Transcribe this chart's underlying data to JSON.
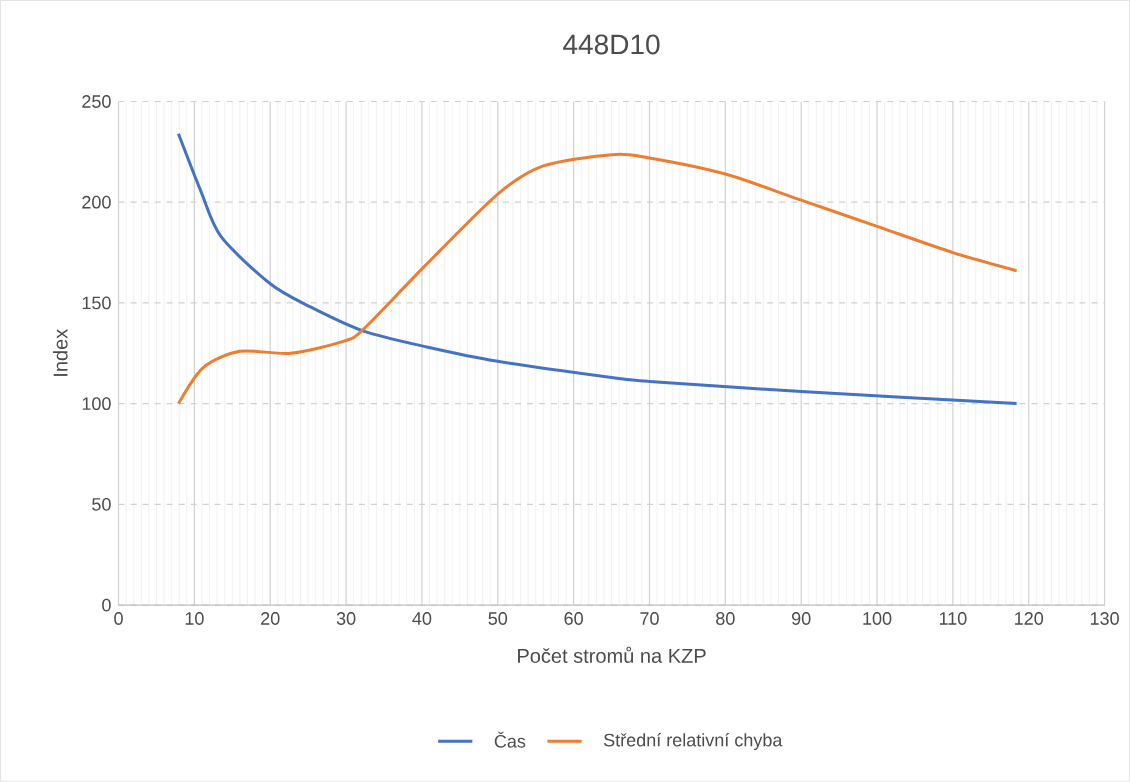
{
  "chart_data": {
    "type": "line",
    "title": "448D10",
    "xlabel": "Počet stromů na KZP",
    "ylabel": "Index",
    "xlim": [
      0,
      130
    ],
    "xticks": [
      0,
      10,
      20,
      30,
      40,
      50,
      60,
      70,
      80,
      90,
      100,
      110,
      120,
      130
    ],
    "ylim": [
      0,
      250
    ],
    "yticks": [
      0,
      50,
      100,
      150,
      200,
      250
    ],
    "grid": true,
    "legend": "bottom",
    "marker": "none",
    "series": [
      {
        "name": "Čas",
        "color": "#4472c4",
        "x": [
          7.9,
          10.8,
          13.5,
          20,
          25.3,
          32.3,
          40.8,
          50,
          65,
          70,
          90,
          118.4
        ],
        "values": [
          234,
          206,
          183,
          159.5,
          148,
          136,
          128,
          121,
          113,
          111,
          106,
          100
        ]
      },
      {
        "name": "Střední relativní chyba",
        "color": "#ed7d31",
        "x": [
          7.9,
          11.2,
          16,
          22.7,
          29.7,
          32.3,
          40.3,
          50,
          56,
          65,
          70,
          80,
          90,
          100,
          110,
          118.4
        ],
        "values": [
          100,
          118,
          126,
          125,
          131,
          137,
          168,
          204,
          218,
          223.6,
          222,
          214,
          201,
          188,
          175,
          166
        ]
      }
    ]
  }
}
